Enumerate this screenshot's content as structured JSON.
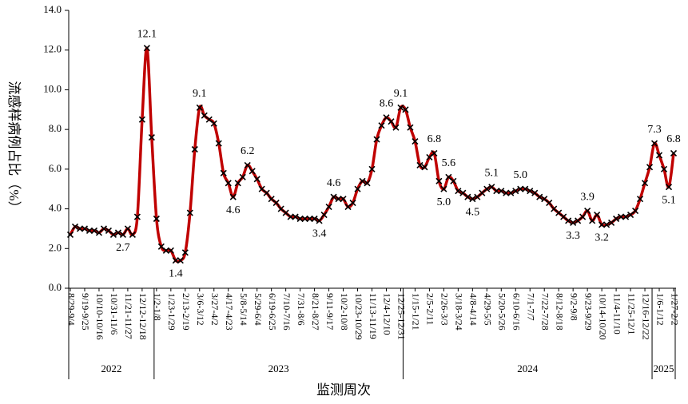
{
  "chart_data": {
    "type": "line",
    "ylabel": "流感样病例占比（%）",
    "xlabel": "监测周次",
    "ylim": [
      0,
      14
    ],
    "yticks": [
      {
        "value": 0,
        "label": "0.0"
      },
      {
        "value": 2,
        "label": "2.0"
      },
      {
        "value": 4,
        "label": "4.0"
      },
      {
        "value": 6,
        "label": "6.0"
      },
      {
        "value": 8,
        "label": "8.0"
      },
      {
        "value": 10,
        "label": "10.0"
      },
      {
        "value": 12,
        "label": "12.0"
      },
      {
        "value": 14,
        "label": "14.0"
      }
    ],
    "categories": [
      "8/29-9/4",
      null,
      null,
      "9/19-9/25",
      null,
      null,
      "10/10-10/16",
      null,
      null,
      "10/31-11/6",
      null,
      null,
      "11/21-11/27",
      null,
      null,
      "12/12-12/18",
      null,
      null,
      "1/2-1/8",
      null,
      null,
      "1/23-1/29",
      null,
      null,
      "2/13-2/19",
      null,
      null,
      "3/6-3/12",
      null,
      null,
      "3/27-4/2",
      null,
      null,
      "4/17-4/23",
      null,
      null,
      "5/8-5/14",
      null,
      null,
      "5/29-6/4",
      null,
      null,
      "6/19-6/25",
      null,
      null,
      "7/10-7/16",
      null,
      null,
      "7/31-8/6",
      null,
      null,
      "8/21-8/27",
      null,
      null,
      "9/11-9/17",
      null,
      null,
      "10/2-10/8",
      null,
      null,
      "10/23-10/29",
      null,
      null,
      "11/13-11/19",
      null,
      null,
      "12/4-12/10",
      null,
      null,
      "12/25-12/31",
      null,
      null,
      "1/15-1/21",
      null,
      null,
      "2/5-2/11",
      null,
      null,
      "2/26-3/3",
      null,
      null,
      "3/18-3/24",
      null,
      null,
      "4/8-4/14",
      null,
      null,
      "4/29-5/5",
      null,
      null,
      "5/20-5/26",
      null,
      null,
      "6/10-6/16",
      null,
      null,
      "7/1-7/7",
      null,
      null,
      "7/22-7/28",
      null,
      null,
      "8/12-8/18",
      null,
      null,
      "9/2-9/8",
      null,
      null,
      "9/23-9/29",
      null,
      null,
      "10/14-10/20",
      null,
      null,
      "11/4-11/10",
      null,
      null,
      "11/25-12/1",
      null,
      null,
      "12/16-12/22",
      null,
      null,
      "1/6-1/12",
      null,
      null,
      "1/27-2/2"
    ],
    "year_groups": [
      {
        "label": "2022",
        "start": 0,
        "end": 17
      },
      {
        "label": "2023",
        "start": 18,
        "end": 69
      },
      {
        "label": "2024",
        "start": 70,
        "end": 121
      },
      {
        "label": "2025",
        "start": 122,
        "end": 126
      }
    ],
    "color": "#c00000",
    "marker_color": "#000000",
    "values": [
      2.7,
      3.1,
      3.0,
      3.0,
      2.9,
      2.9,
      2.8,
      3.0,
      2.9,
      2.7,
      2.8,
      2.7,
      3.0,
      2.7,
      3.6,
      8.5,
      12.1,
      7.6,
      3.5,
      2.1,
      1.9,
      1.9,
      1.4,
      1.4,
      1.8,
      3.8,
      7.0,
      9.1,
      8.7,
      8.5,
      8.3,
      7.3,
      5.8,
      5.3,
      4.6,
      5.3,
      5.6,
      6.2,
      5.9,
      5.5,
      5.0,
      4.8,
      4.5,
      4.3,
      4.0,
      3.8,
      3.6,
      3.6,
      3.5,
      3.5,
      3.5,
      3.5,
      3.4,
      3.7,
      4.1,
      4.6,
      4.5,
      4.5,
      4.1,
      4.3,
      5.0,
      5.4,
      5.3,
      6.0,
      7.5,
      8.2,
      8.6,
      8.4,
      8.1,
      9.1,
      9.0,
      8.1,
      7.4,
      6.2,
      6.1,
      6.6,
      6.8,
      5.4,
      5.0,
      5.6,
      5.4,
      4.9,
      4.8,
      4.6,
      4.5,
      4.6,
      4.8,
      5.0,
      5.1,
      4.9,
      4.9,
      4.8,
      4.8,
      4.9,
      5.0,
      5.0,
      4.9,
      4.8,
      4.6,
      4.5,
      4.3,
      4.0,
      3.8,
      3.6,
      3.4,
      3.3,
      3.4,
      3.6,
      3.9,
      3.4,
      3.7,
      3.2,
      3.2,
      3.3,
      3.5,
      3.6,
      3.6,
      3.7,
      3.9,
      4.5,
      5.3,
      6.1,
      7.3,
      6.7,
      6.0,
      5.1,
      6.8
    ],
    "value_labels": [
      null,
      null,
      null,
      null,
      null,
      null,
      null,
      null,
      null,
      null,
      null,
      "2.7",
      null,
      null,
      null,
      null,
      "12.1",
      null,
      null,
      null,
      null,
      null,
      "1.4",
      null,
      null,
      null,
      null,
      "9.1",
      null,
      null,
      null,
      null,
      null,
      null,
      "4.6",
      null,
      null,
      "6.2",
      null,
      null,
      null,
      null,
      null,
      null,
      null,
      null,
      null,
      null,
      null,
      null,
      null,
      null,
      "3.4",
      null,
      null,
      "4.6",
      null,
      null,
      null,
      null,
      null,
      null,
      null,
      null,
      null,
      null,
      "8.6",
      null,
      null,
      "9.1",
      null,
      null,
      null,
      null,
      null,
      null,
      "6.8",
      null,
      "5.0",
      "5.6",
      null,
      null,
      null,
      null,
      "4.5",
      null,
      null,
      null,
      "5.1",
      null,
      null,
      null,
      null,
      null,
      "5.0",
      null,
      null,
      null,
      null,
      null,
      null,
      null,
      null,
      null,
      null,
      "3.3",
      null,
      null,
      "3.9",
      null,
      null,
      "3.2",
      null,
      null,
      null,
      null,
      null,
      null,
      null,
      null,
      null,
      null,
      "7.3",
      null,
      null,
      "5.1",
      "6.8"
    ]
  }
}
